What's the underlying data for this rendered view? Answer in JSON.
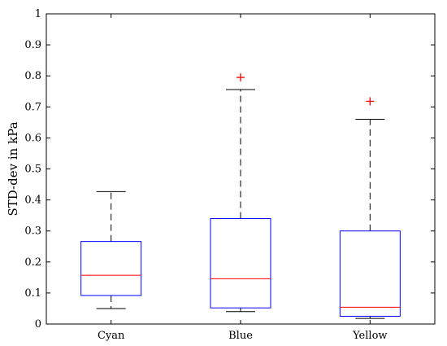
{
  "chart_data": {
    "type": "box",
    "title": "",
    "xlabel": "",
    "ylabel": "STD-dev in kPa",
    "ylim": [
      0,
      1
    ],
    "yticks": [
      "0",
      "0.1",
      "0.2",
      "0.3",
      "0.4",
      "0.5",
      "0.6",
      "0.7",
      "0.8",
      "0.9",
      "1"
    ],
    "grid": false,
    "categories": [
      "Cyan",
      "Blue",
      "Yellow"
    ],
    "boxes": [
      {
        "name": "Cyan",
        "whisker_low": 0.05,
        "q1": 0.092,
        "median": 0.157,
        "q3": 0.266,
        "whisker_high": 0.427,
        "outliers": []
      },
      {
        "name": "Blue",
        "whisker_low": 0.04,
        "q1": 0.052,
        "median": 0.146,
        "q3": 0.34,
        "whisker_high": 0.756,
        "outliers": [
          0.795
        ]
      },
      {
        "name": "Yellow",
        "whisker_low": 0.018,
        "q1": 0.025,
        "median": 0.054,
        "q3": 0.3,
        "whisker_high": 0.66,
        "outliers": [
          0.718
        ]
      }
    ],
    "colors": {
      "box": "#0000ff",
      "median": "#ff0000",
      "whisker": "#000000",
      "outlier": "#ff0000"
    }
  }
}
